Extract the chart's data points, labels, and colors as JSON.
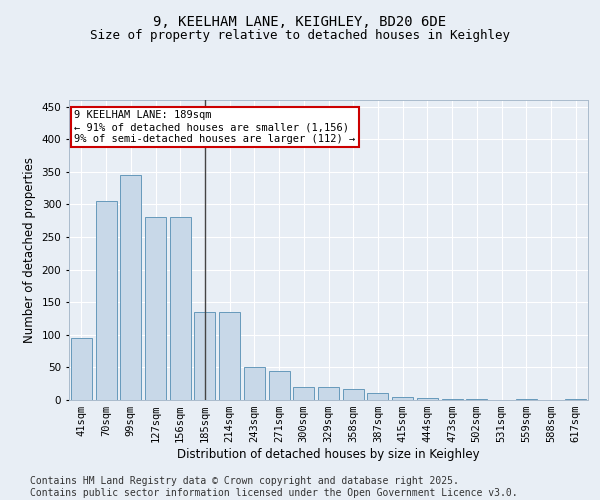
{
  "title_line1": "9, KEELHAM LANE, KEIGHLEY, BD20 6DE",
  "title_line2": "Size of property relative to detached houses in Keighley",
  "xlabel": "Distribution of detached houses by size in Keighley",
  "ylabel": "Number of detached properties",
  "categories": [
    "41sqm",
    "70sqm",
    "99sqm",
    "127sqm",
    "156sqm",
    "185sqm",
    "214sqm",
    "243sqm",
    "271sqm",
    "300sqm",
    "329sqm",
    "358sqm",
    "387sqm",
    "415sqm",
    "444sqm",
    "473sqm",
    "502sqm",
    "531sqm",
    "559sqm",
    "588sqm",
    "617sqm"
  ],
  "values": [
    95,
    305,
    345,
    280,
    280,
    135,
    135,
    50,
    45,
    20,
    20,
    17,
    10,
    5,
    3,
    1,
    1,
    0,
    1,
    0,
    1
  ],
  "bar_color": "#c8d8e8",
  "bar_edge_color": "#6699bb",
  "highlight_bar_index": 5,
  "highlight_line_color": "#444444",
  "annotation_text": "9 KEELHAM LANE: 189sqm\n← 91% of detached houses are smaller (1,156)\n9% of semi-detached houses are larger (112) →",
  "annotation_box_facecolor": "#ffffff",
  "annotation_box_edgecolor": "#cc0000",
  "ylim": [
    0,
    460
  ],
  "yticks": [
    0,
    50,
    100,
    150,
    200,
    250,
    300,
    350,
    400,
    450
  ],
  "bg_color": "#e8eef5",
  "plot_bg_color": "#e8eef5",
  "grid_color": "#ffffff",
  "footer_text": "Contains HM Land Registry data © Crown copyright and database right 2025.\nContains public sector information licensed under the Open Government Licence v3.0.",
  "title_fontsize": 10,
  "subtitle_fontsize": 9,
  "axis_label_fontsize": 8.5,
  "tick_fontsize": 7.5,
  "annotation_fontsize": 7.5,
  "footer_fontsize": 7
}
